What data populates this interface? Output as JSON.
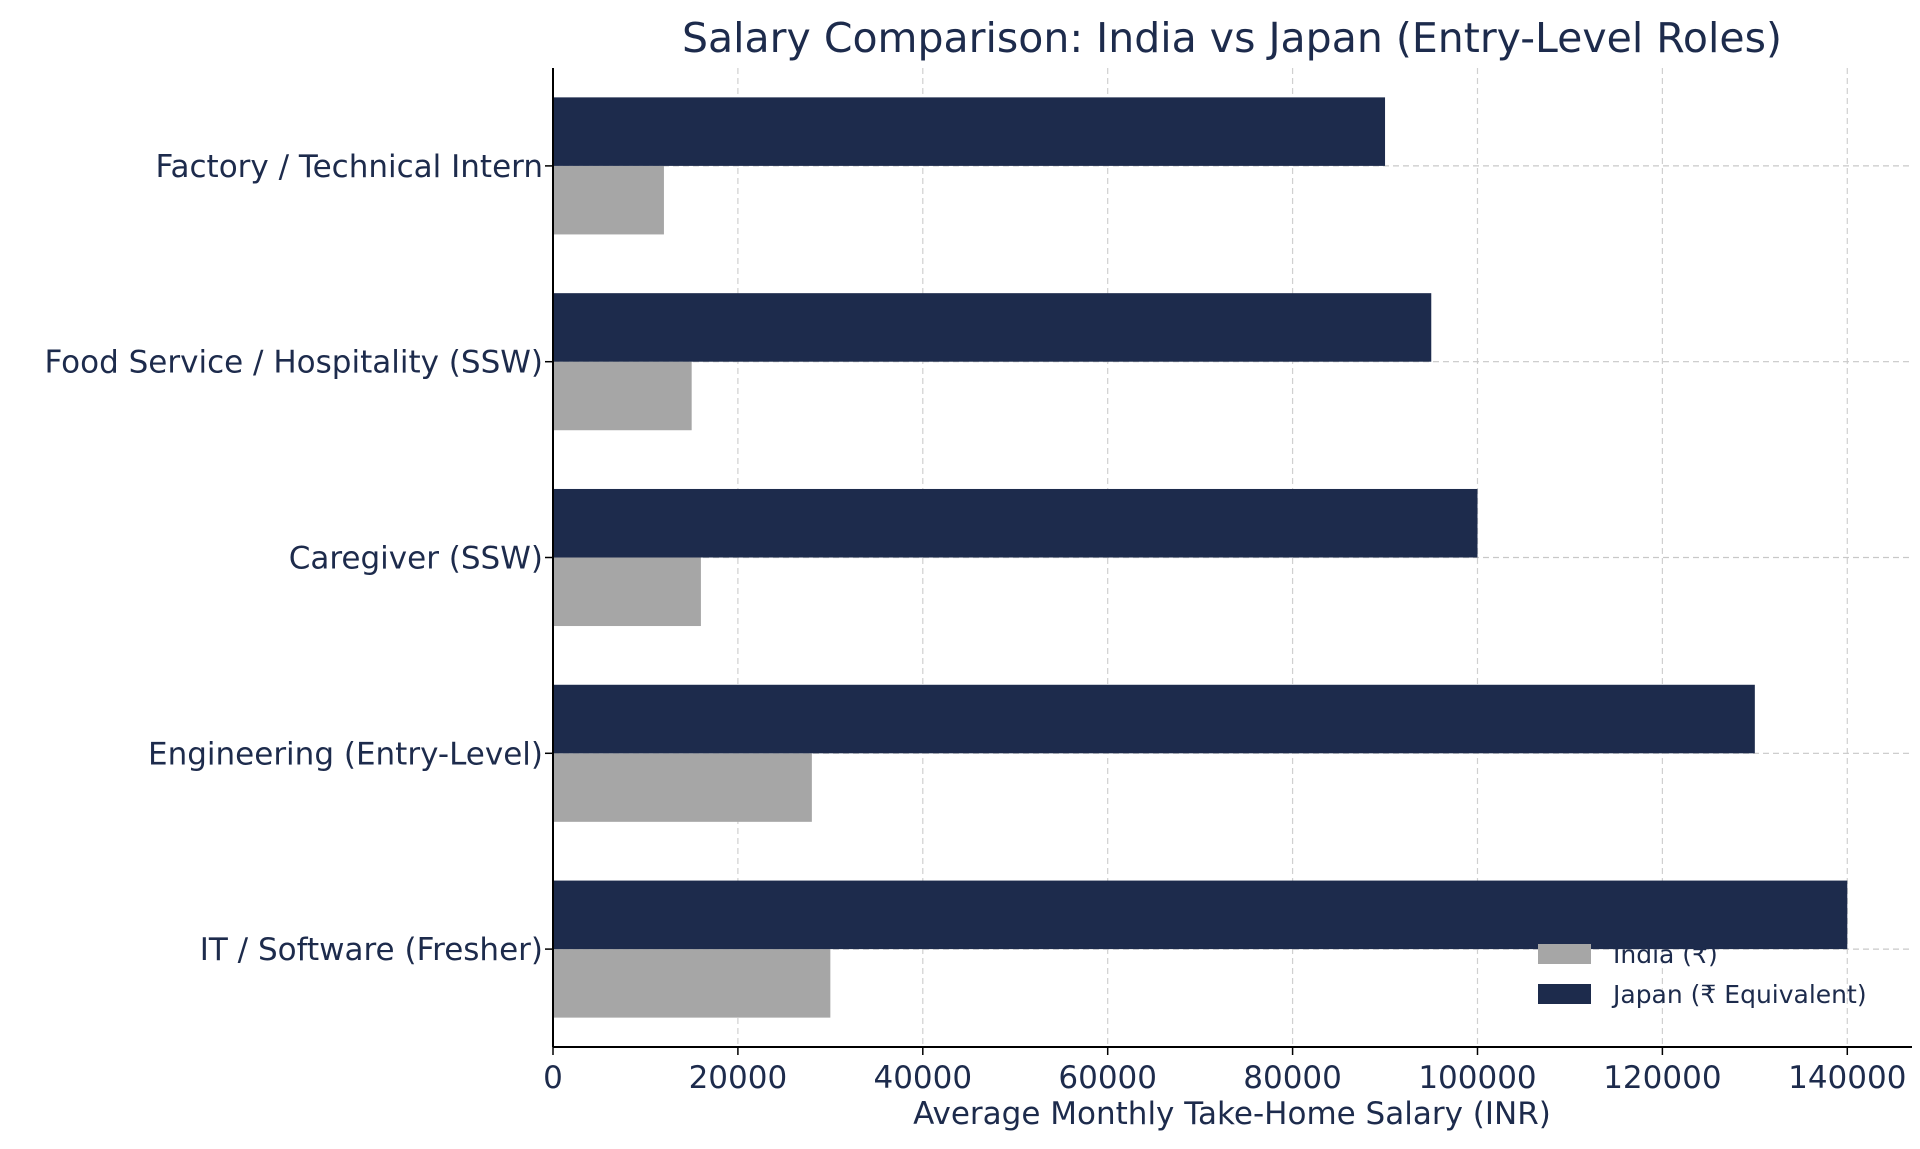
{
  "chart_data": {
    "type": "bar",
    "orientation": "horizontal",
    "title": "Salary Comparison: India vs Japan (Entry-Level Roles)",
    "xlabel": "Average Monthly Take-Home Salary (INR)",
    "ylabel": "",
    "categories": [
      "Factory / Technical Intern",
      "Food Service / Hospitality (SSW)",
      "Caregiver (SSW)",
      "Engineering (Entry-Level)",
      "IT / Software (Fresher)"
    ],
    "series": [
      {
        "name": "India (₹)",
        "color": "#a6a6a6",
        "values": [
          12000,
          15000,
          16000,
          28000,
          30000
        ]
      },
      {
        "name": "Japan (₹ Equivalent)",
        "color": "#1d2b4c",
        "values": [
          90000,
          95000,
          100000,
          130000,
          140000
        ]
      }
    ],
    "xlim": [
      0,
      147000
    ],
    "xticks": [
      "0",
      "20000",
      "40000",
      "60000",
      "80000",
      "100000",
      "120000",
      "140000"
    ],
    "grid": true,
    "legend_position": "lower-right",
    "text_color": "#1d2b4c"
  }
}
